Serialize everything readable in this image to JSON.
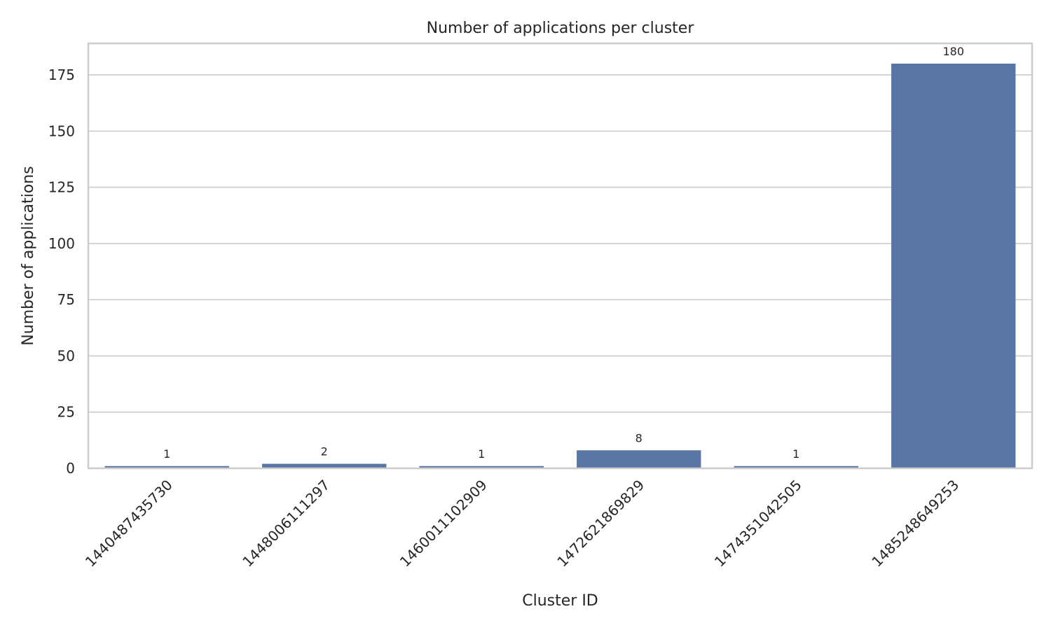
{
  "chart_data": {
    "type": "bar",
    "title": "Number of applications per cluster",
    "xlabel": "Cluster ID",
    "ylabel": "Number of applications",
    "categories": [
      "1440487435730",
      "1448006111297",
      "1460011102909",
      "1472621869829",
      "1474351042505",
      "1485248649253"
    ],
    "values": [
      1,
      2,
      1,
      8,
      1,
      180
    ],
    "data_labels": [
      "1",
      "2",
      "1",
      "8",
      "1",
      "180"
    ],
    "ylim": [
      0,
      189
    ],
    "yticks": [
      0,
      25,
      50,
      75,
      100,
      125,
      150,
      175
    ],
    "xtick_rotation_deg": 45,
    "grid": "horizontal",
    "legend": "none",
    "bar_color": "#5975a4"
  }
}
